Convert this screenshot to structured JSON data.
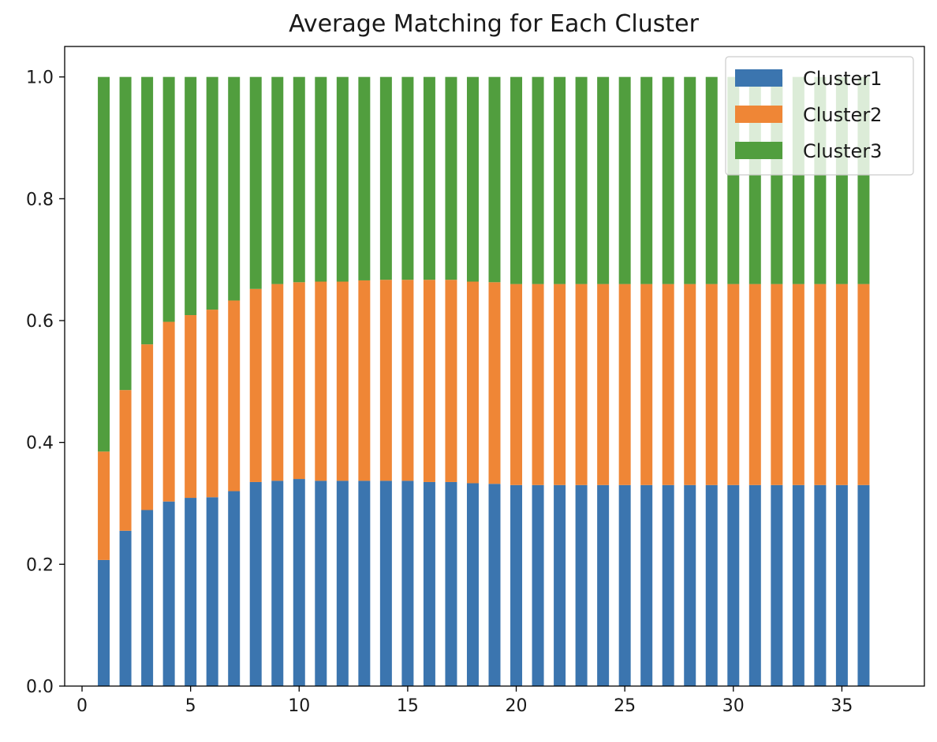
{
  "chart_data": {
    "type": "bar",
    "stacked": true,
    "title": "Average Matching for Each Cluster",
    "xlabel": "",
    "ylabel": "",
    "x": [
      1,
      2,
      3,
      4,
      5,
      6,
      7,
      8,
      9,
      10,
      11,
      12,
      13,
      14,
      15,
      16,
      17,
      18,
      19,
      20,
      21,
      22,
      23,
      24,
      25,
      26,
      27,
      28,
      29,
      30,
      31,
      32,
      33,
      34,
      35,
      36
    ],
    "xlim": [
      -0.8,
      38.8
    ],
    "ylim": [
      0,
      1.05
    ],
    "xticks": [
      0,
      5,
      10,
      15,
      20,
      25,
      30,
      35
    ],
    "xtick_labels": [
      "0",
      "5",
      "10",
      "15",
      "20",
      "25",
      "30",
      "35"
    ],
    "yticks": [
      0.0,
      0.2,
      0.4,
      0.6,
      0.8,
      1.0
    ],
    "ytick_labels": [
      "0.0",
      "0.2",
      "0.4",
      "0.6",
      "0.8",
      "1.0"
    ],
    "grid": false,
    "legend_position": "top-right",
    "series": [
      {
        "name": "Cluster1",
        "color": "#3b75af",
        "values": [
          0.207,
          0.255,
          0.289,
          0.303,
          0.309,
          0.31,
          0.32,
          0.335,
          0.337,
          0.34,
          0.337,
          0.337,
          0.337,
          0.337,
          0.337,
          0.335,
          0.335,
          0.333,
          0.332,
          0.33,
          0.33,
          0.33,
          0.33,
          0.33,
          0.33,
          0.33,
          0.33,
          0.33,
          0.33,
          0.33,
          0.33,
          0.33,
          0.33,
          0.33,
          0.33,
          0.33
        ]
      },
      {
        "name": "Cluster2",
        "color": "#ef8636",
        "values": [
          0.178,
          0.231,
          0.272,
          0.295,
          0.3,
          0.308,
          0.313,
          0.317,
          0.323,
          0.323,
          0.327,
          0.327,
          0.329,
          0.33,
          0.33,
          0.332,
          0.332,
          0.331,
          0.331,
          0.33,
          0.33,
          0.33,
          0.33,
          0.33,
          0.33,
          0.33,
          0.33,
          0.33,
          0.33,
          0.33,
          0.33,
          0.33,
          0.33,
          0.33,
          0.33,
          0.33
        ]
      },
      {
        "name": "Cluster3",
        "color": "#519e3e",
        "values": [
          0.615,
          0.514,
          0.439,
          0.402,
          0.391,
          0.382,
          0.367,
          0.348,
          0.34,
          0.337,
          0.336,
          0.336,
          0.334,
          0.333,
          0.333,
          0.333,
          0.333,
          0.336,
          0.337,
          0.34,
          0.34,
          0.34,
          0.34,
          0.34,
          0.34,
          0.34,
          0.34,
          0.34,
          0.34,
          0.34,
          0.34,
          0.34,
          0.34,
          0.34,
          0.34,
          0.34
        ]
      }
    ]
  }
}
